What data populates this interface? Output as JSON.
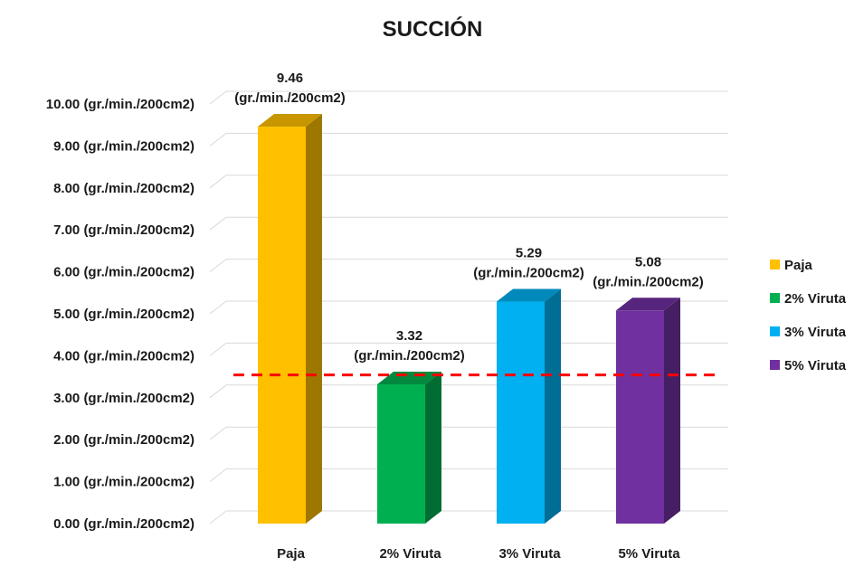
{
  "chart_data": {
    "type": "bar",
    "title": "SUCCIÓN",
    "categories": [
      "Paja",
      "2% Viruta",
      "3% Viruta",
      "5% Viruta"
    ],
    "values": [
      9.46,
      3.32,
      5.29,
      5.08
    ],
    "unit": "(gr./min./200cm2)",
    "value_labels": [
      "9.46",
      "3.32",
      "5.29",
      "5.08"
    ],
    "colors": [
      "#FFC000",
      "#00B050",
      "#00B0F0",
      "#7030A0"
    ],
    "ylim": [
      0,
      10
    ],
    "y_ticks": [
      "0.00",
      "1.00",
      "2.00",
      "3.00",
      "4.00",
      "5.00",
      "6.00",
      "7.00",
      "8.00",
      "9.00",
      "10.00"
    ],
    "reference_line": {
      "value": 3.5,
      "color": "#FF0000",
      "style": "dashed"
    },
    "legend": {
      "placement": "right",
      "entries": [
        "Paja",
        "2% Viruta",
        "3% Viruta",
        "5% Viruta"
      ]
    },
    "grid": true,
    "three_d": true
  }
}
